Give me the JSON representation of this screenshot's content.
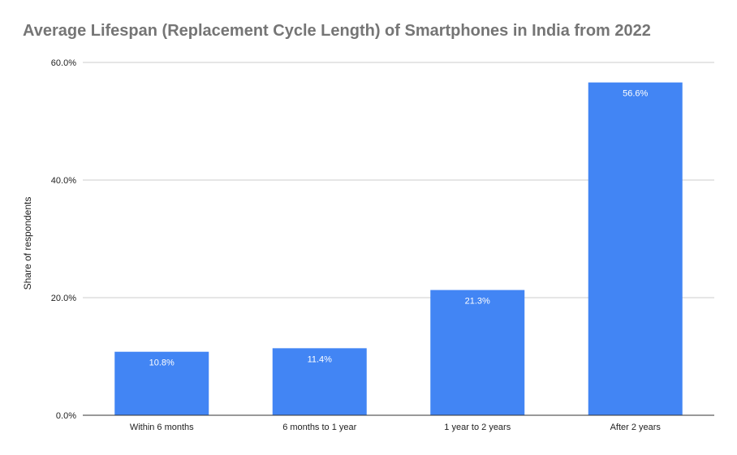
{
  "chart_data": {
    "type": "bar",
    "title": "Average Lifespan (Replacement Cycle Length) of Smartphones in India from 2022",
    "xlabel": "",
    "ylabel": "Share of respondents",
    "categories": [
      "Within 6 months",
      "6 months to 1 year",
      "1 year to 2 years",
      "After 2 years"
    ],
    "values": [
      10.8,
      11.4,
      21.3,
      56.6
    ],
    "data_labels": [
      "10.8%",
      "11.4%",
      "21.3%",
      "56.6%"
    ],
    "ylim": [
      0,
      60
    ],
    "yticks": [
      0,
      20,
      40,
      60
    ],
    "ytick_labels": [
      "0.0%",
      "20.0%",
      "40.0%",
      "60.0%"
    ],
    "grid": true,
    "legend": "none",
    "bar_color": "#4285f4"
  }
}
